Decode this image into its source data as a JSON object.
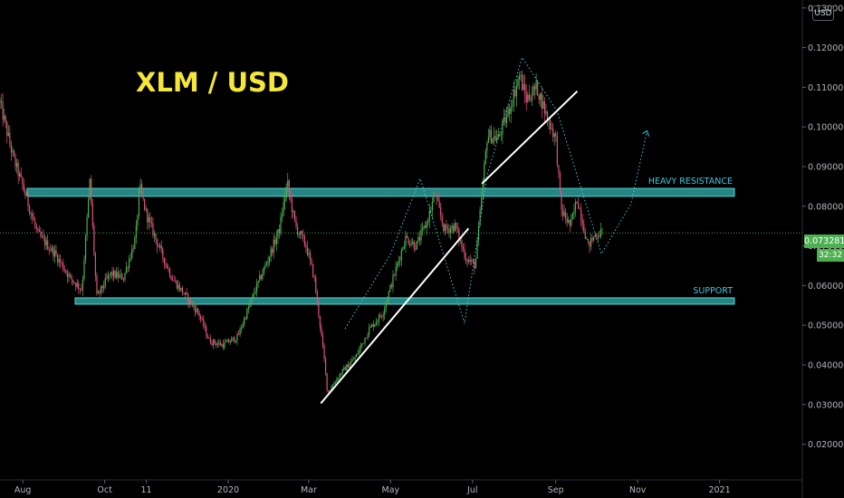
{
  "title": "XLM / USD",
  "currency": "USD",
  "current_price_label": "0.073281",
  "countdown_label": "32:32",
  "colors": {
    "background": "#000000",
    "up_candle": "#4caf50",
    "down_candle": "#e0507a",
    "zone_fill": "#2a9d9a",
    "zone_label": "#3ec6dd",
    "title": "#f5e63a",
    "trendline": "#ffffff",
    "projection": "#3ec6dd",
    "price_tag": "#4caf50",
    "axis_text": "#b2b5be"
  },
  "chart_data": {
    "type": "candlestick",
    "x_ticks": [
      "Aug",
      "Oct",
      "11",
      "2020",
      "Mar",
      "May",
      "Jul",
      "Sep",
      "Nov",
      "2021"
    ],
    "y_ticks": [
      0.02,
      0.03,
      0.04,
      0.05,
      0.06,
      0.07,
      0.08,
      0.09,
      0.1,
      0.11,
      0.12,
      0.13
    ],
    "y_tick_labels": [
      "0.020000",
      "0.030000",
      "0.040000",
      "0.050000",
      "0.060000",
      "0.070000",
      "0.080000",
      "0.090000",
      "0.100000",
      "0.110000",
      "0.120000",
      "0.130000"
    ],
    "ylim": [
      0.011,
      0.132
    ],
    "current_price": 0.073281,
    "zones": [
      {
        "label": "HEAVY RESISTANCE",
        "low": 0.0825,
        "high": 0.0845
      },
      {
        "label": "SUPPORT",
        "low": 0.0553,
        "high": 0.0569
      }
    ],
    "trendlines": [
      {
        "from": [
          "2020-03-10",
          0.0303
        ],
        "to": [
          "2020-06-28",
          0.0744
        ]
      },
      {
        "from": [
          "2020-07-08",
          0.0857
        ],
        "to": [
          "2020-09-17",
          0.109
        ]
      }
    ],
    "projection_path": [
      [
        "2020-03-28",
        0.0491
      ],
      [
        "2020-05-01",
        0.068
      ],
      [
        "2020-05-23",
        0.087
      ],
      [
        "2020-06-25",
        0.0505
      ],
      [
        "2020-07-12",
        0.088
      ],
      [
        "2020-08-07",
        0.1175
      ],
      [
        "2020-09-02",
        0.104
      ],
      [
        "2020-10-05",
        0.068
      ],
      [
        "2020-10-27",
        0.0805
      ],
      [
        "2020-11-08",
        0.099
      ]
    ],
    "price_path": [
      [
        "2019-07-15",
        0.106
      ],
      [
        "2019-07-25",
        0.092
      ],
      [
        "2019-08-01",
        0.085
      ],
      [
        "2019-08-12",
        0.073
      ],
      [
        "2019-08-25",
        0.068
      ],
      [
        "2019-09-05",
        0.062
      ],
      [
        "2019-09-14",
        0.059
      ],
      [
        "2019-09-20",
        0.0865
      ],
      [
        "2019-09-25",
        0.057
      ],
      [
        "2019-10-05",
        0.063
      ],
      [
        "2019-10-15",
        0.062
      ],
      [
        "2019-10-24",
        0.072
      ],
      [
        "2019-10-27",
        0.085
      ],
      [
        "2019-11-01",
        0.078
      ],
      [
        "2019-11-10",
        0.07
      ],
      [
        "2019-11-20",
        0.062
      ],
      [
        "2019-12-01",
        0.057
      ],
      [
        "2019-12-10",
        0.053
      ],
      [
        "2019-12-18",
        0.046
      ],
      [
        "2019-12-28",
        0.045
      ],
      [
        "2020-01-08",
        0.047
      ],
      [
        "2020-01-20",
        0.058
      ],
      [
        "2020-01-30",
        0.066
      ],
      [
        "2020-02-08",
        0.074
      ],
      [
        "2020-02-14",
        0.086
      ],
      [
        "2020-02-20",
        0.075
      ],
      [
        "2020-02-28",
        0.07
      ],
      [
        "2020-03-05",
        0.062
      ],
      [
        "2020-03-12",
        0.043
      ],
      [
        "2020-03-15",
        0.033
      ],
      [
        "2020-03-25",
        0.038
      ],
      [
        "2020-04-05",
        0.042
      ],
      [
        "2020-04-15",
        0.049
      ],
      [
        "2020-04-25",
        0.053
      ],
      [
        "2020-05-03",
        0.062
      ],
      [
        "2020-05-12",
        0.072
      ],
      [
        "2020-05-20",
        0.07
      ],
      [
        "2020-05-28",
        0.076
      ],
      [
        "2020-06-03",
        0.083
      ],
      [
        "2020-06-10",
        0.074
      ],
      [
        "2020-06-18",
        0.075
      ],
      [
        "2020-06-26",
        0.067
      ],
      [
        "2020-07-03",
        0.065
      ],
      [
        "2020-07-08",
        0.083
      ],
      [
        "2020-07-12",
        0.098
      ],
      [
        "2020-07-20",
        0.097
      ],
      [
        "2020-07-28",
        0.104
      ],
      [
        "2020-08-05",
        0.113
      ],
      [
        "2020-08-10",
        0.107
      ],
      [
        "2020-08-18",
        0.11
      ],
      [
        "2020-08-25",
        0.103
      ],
      [
        "2020-09-01",
        0.097
      ],
      [
        "2020-09-05",
        0.079
      ],
      [
        "2020-09-12",
        0.075
      ],
      [
        "2020-09-17",
        0.082
      ],
      [
        "2020-09-25",
        0.07
      ],
      [
        "2020-10-01",
        0.073
      ],
      [
        "2020-10-06",
        0.0733
      ]
    ]
  }
}
